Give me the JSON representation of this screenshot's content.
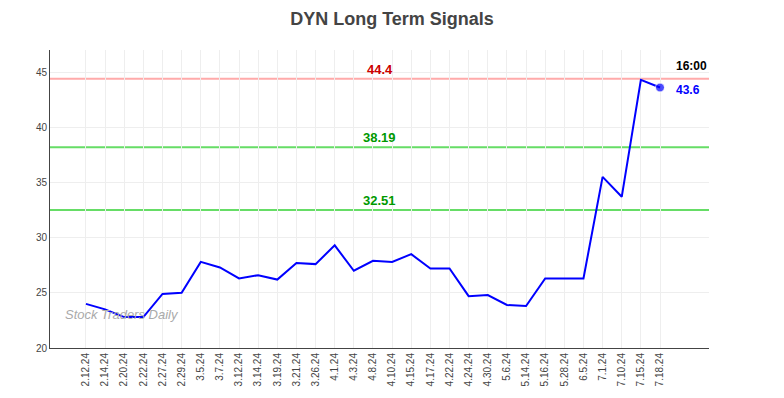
{
  "chart_data": {
    "type": "line",
    "title": "DYN Long Term Signals",
    "categories": [
      "2.12.24",
      "2.14.24",
      "2.20.24",
      "2.22.24",
      "2.27.24",
      "2.29.24",
      "3.5.24",
      "3.7.24",
      "3.12.24",
      "3.14.24",
      "3.19.24",
      "3.21.24",
      "3.26.24",
      "4.1.24",
      "4.3.24",
      "4.8.24",
      "4.10.24",
      "4.15.24",
      "4.17.24",
      "4.22.24",
      "4.24.24",
      "4.30.24",
      "5.6.24",
      "5.14.24",
      "5.16.24",
      "5.28.24",
      "6.5.24",
      "7.1.24",
      "7.10.24",
      "7.15.24",
      "7.18.24"
    ],
    "values": [
      24.0,
      23.5,
      22.8,
      22.8,
      24.9,
      25.0,
      27.8,
      27.3,
      26.3,
      26.6,
      26.2,
      27.7,
      27.6,
      29.3,
      27.0,
      27.9,
      27.8,
      28.5,
      27.2,
      27.2,
      24.7,
      24.8,
      23.9,
      23.8,
      26.3,
      26.3,
      26.3,
      35.5,
      33.7,
      44.3,
      43.6
    ],
    "color": "#0000ff",
    "ylim": [
      20,
      47
    ],
    "yticks": [
      20,
      25,
      30,
      35,
      40,
      45
    ],
    "grid": true,
    "hlines": [
      {
        "value": 44.4,
        "label": "44.4",
        "color": "#ffaaaa",
        "label_color": "#cc0000"
      },
      {
        "value": 38.19,
        "label": "38.19",
        "color": "#66dd66",
        "label_color": "#009900"
      },
      {
        "value": 32.51,
        "label": "32.51",
        "color": "#66dd66",
        "label_color": "#009900"
      }
    ],
    "endpoint_labels": [
      {
        "text": "16:00",
        "color": "#000000"
      },
      {
        "text": "43.6",
        "color": "#0000ff"
      }
    ],
    "watermark": {
      "text": "Stock Traders Daily",
      "color": "#aaaaaa"
    }
  }
}
